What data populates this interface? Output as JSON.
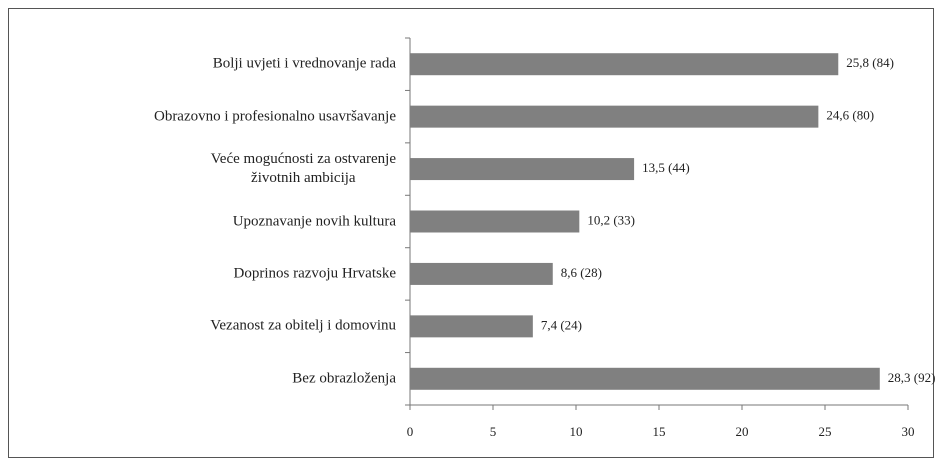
{
  "chart_data": {
    "type": "bar",
    "orientation": "horizontal",
    "categories": [
      "Bolji uvjeti i vrednovanje rada",
      "Obrazovno i profesionalno usavršavanje",
      "Veće mogućnosti za ostvarenje\nživotnih ambicija",
      "Upoznavanje novih kultura",
      "Doprinos razvoju Hrvatske",
      "Vezanost za obitelj i domovinu",
      "Bez obrazloženja"
    ],
    "values": [
      25.8,
      24.6,
      13.5,
      10.2,
      8.6,
      7.4,
      28.3
    ],
    "value_labels": [
      "25,8 (84)",
      "24,6 (80)",
      "13,5 (44)",
      "10,2 (33)",
      "8,6 (28)",
      "7,4 (24)",
      "28,3 (92)"
    ],
    "color": "#808080",
    "xlim": [
      0,
      30
    ],
    "xticks": [
      0,
      5,
      10,
      15,
      20,
      25,
      30
    ],
    "grid": false
  }
}
